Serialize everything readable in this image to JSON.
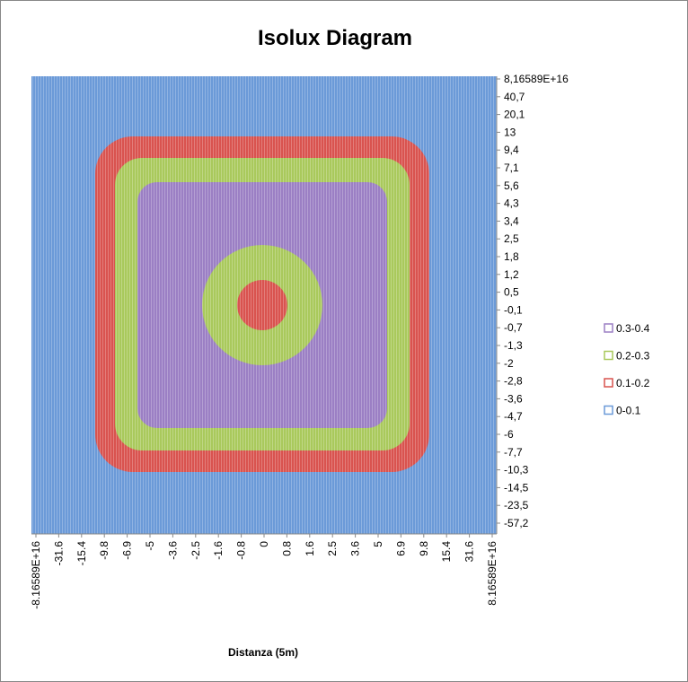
{
  "chart_data": {
    "type": "contour",
    "title": "Isolux Diagram",
    "x_label": "Distanza (5m)",
    "categories": [
      "-8.16589E+16",
      "-31.6",
      "-15.4",
      "-9.8",
      "-6.9",
      "-5",
      "-3.6",
      "-2.5",
      "-1.6",
      "-0.8",
      "0",
      "0.8",
      "1.6",
      "2.5",
      "3.6",
      "5",
      "6.9",
      "9.8",
      "15.4",
      "31.6",
      "8.16589E+16"
    ],
    "y_categories": [
      "8,16589E+16",
      "40,7",
      "20,1",
      "13",
      "9,4",
      "7,1",
      "5,6",
      "4,3",
      "3,4",
      "2,5",
      "1,8",
      "1,2",
      "0,5",
      "-0,1",
      "-0,7",
      "-1,3",
      "-2",
      "-2,8",
      "-3,6",
      "-4,7",
      "-6",
      "-7,7",
      "-10,3",
      "-14,5",
      "-23,5",
      "-57,2"
    ],
    "series": [
      {
        "name": "0.3-0.4",
        "color": "#9b7fc4"
      },
      {
        "name": "0.2-0.3",
        "color": "#a9c95c"
      },
      {
        "name": "0.1-0.2",
        "color": "#d9534f"
      },
      {
        "name": "0-0.1",
        "color": "#6b9ad8"
      }
    ],
    "legend": "right"
  }
}
